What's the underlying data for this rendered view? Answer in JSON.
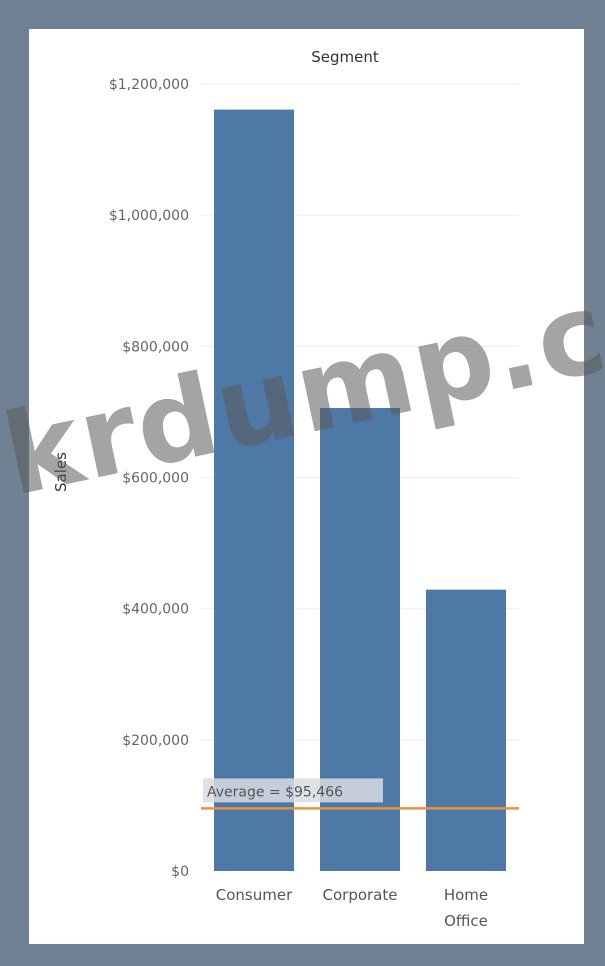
{
  "chart_data": {
    "type": "bar",
    "title": "Segment",
    "ylabel": "Sales",
    "xlabel": "",
    "categories": [
      "Consumer",
      "Corporate",
      "Home Office"
    ],
    "values": [
      1161000,
      706000,
      429000
    ],
    "ylim": [
      0,
      1200000
    ],
    "yticks": [
      0,
      200000,
      400000,
      600000,
      800000,
      1000000,
      1200000
    ],
    "ytick_labels": [
      "$0",
      "$200,000",
      "$400,000",
      "$600,000",
      "$800,000",
      "$1,000,000",
      "$1,200,000"
    ],
    "reference_line": {
      "value": 95466,
      "label": "Average = $95,466",
      "color": "#e8943c"
    },
    "bar_color": "#4e79a7",
    "grid": true,
    "legend": "none"
  },
  "watermark": "krdump.com"
}
